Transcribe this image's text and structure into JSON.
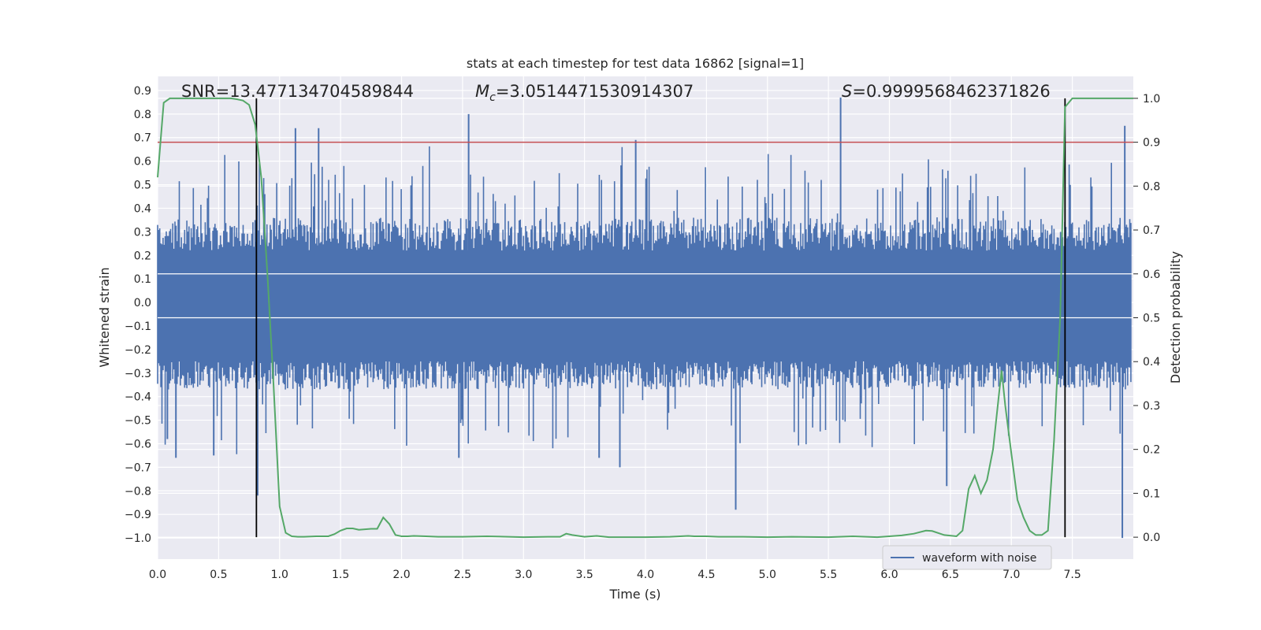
{
  "chart_data": {
    "type": "line",
    "title": "stats at each timestep for test data 16862 [signal=1]",
    "xlabel": "Time (s)",
    "ylabel": "Whitened strain",
    "y2label": "Detection probability",
    "xlim": [
      0.0,
      8.0
    ],
    "ylim": [
      -1.09,
      0.96
    ],
    "y2lim": [
      -0.05,
      1.05
    ],
    "xticks": [
      "0.0",
      "0.5",
      "1.0",
      "1.5",
      "2.0",
      "2.5",
      "3.0",
      "3.5",
      "4.0",
      "4.5",
      "5.0",
      "5.5",
      "6.0",
      "6.5",
      "7.0",
      "7.5"
    ],
    "yticks": [
      "0.9",
      "0.8",
      "0.7",
      "0.6",
      "0.5",
      "0.4",
      "0.3",
      "0.2",
      "0.1",
      "0.0",
      "−0.1",
      "−0.2",
      "−0.3",
      "−0.4",
      "−0.5",
      "−0.6",
      "−0.7",
      "−0.8",
      "−0.9",
      "−1.0"
    ],
    "y2ticks": [
      "1.0",
      "0.9",
      "0.8",
      "0.7",
      "0.6",
      "0.5",
      "0.4",
      "0.3",
      "0.2",
      "0.1",
      "0.0"
    ],
    "annotations": {
      "snr": "SNR=13.477134704589844",
      "mc": "=3.0514471530914307",
      "mc_symbol": "M",
      "mc_sub": "c",
      "s": "=0.9999568462371826",
      "s_symbol": "S"
    },
    "threshold": {
      "value": 0.9,
      "axis": "right",
      "color": "#c44e52"
    },
    "vlines": [
      0.81,
      7.44
    ],
    "legend": {
      "label": "waveform with noise",
      "position": "lower-right"
    },
    "colors": {
      "waveform": "#4c72b0",
      "probability": "#55a868",
      "threshold": "#c44e52",
      "vline": "#000000",
      "background": "#eaeaf2",
      "grid": "#ffffff"
    },
    "series": [
      {
        "name": "waveform with noise",
        "axis": "left",
        "description": "whitened strain noise, typical range about -0.3 to 0.3, peaks up to 0.87",
        "spikes": [
          {
            "x": 0.08,
            "y": -0.58
          },
          {
            "x": 0.15,
            "y": -0.66
          },
          {
            "x": 0.46,
            "y": -0.65
          },
          {
            "x": 0.82,
            "y": -0.82
          },
          {
            "x": 1.13,
            "y": 0.74
          },
          {
            "x": 1.32,
            "y": 0.74
          },
          {
            "x": 2.47,
            "y": -0.66
          },
          {
            "x": 2.55,
            "y": 0.8
          },
          {
            "x": 3.62,
            "y": -0.66
          },
          {
            "x": 3.79,
            "y": -0.7
          },
          {
            "x": 3.92,
            "y": 0.69
          },
          {
            "x": 4.74,
            "y": -0.88
          },
          {
            "x": 5.6,
            "y": 0.87
          },
          {
            "x": 6.47,
            "y": -0.78
          },
          {
            "x": 7.91,
            "y": -1.0
          },
          {
            "x": 7.93,
            "y": 0.75
          }
        ]
      },
      {
        "name": "detection probability",
        "axis": "right",
        "x": [
          0.0,
          0.05,
          0.1,
          0.15,
          0.2,
          0.3,
          0.4,
          0.5,
          0.55,
          0.6,
          0.65,
          0.7,
          0.75,
          0.8,
          0.85,
          0.9,
          0.95,
          1.0,
          1.05,
          1.1,
          1.15,
          1.2,
          1.3,
          1.4,
          1.45,
          1.5,
          1.55,
          1.6,
          1.65,
          1.7,
          1.75,
          1.8,
          1.85,
          1.9,
          1.95,
          2.0,
          2.05,
          2.1,
          2.2,
          2.3,
          2.5,
          2.7,
          3.0,
          3.2,
          3.3,
          3.35,
          3.4,
          3.5,
          3.6,
          3.7,
          3.8,
          3.9,
          4.0,
          4.2,
          4.35,
          4.4,
          4.5,
          4.6,
          4.8,
          5.0,
          5.2,
          5.5,
          5.7,
          5.9,
          6.0,
          6.1,
          6.2,
          6.3,
          6.35,
          6.45,
          6.55,
          6.6,
          6.65,
          6.7,
          6.75,
          6.8,
          6.85,
          6.9,
          6.92,
          6.95,
          7.0,
          7.05,
          7.1,
          7.15,
          7.2,
          7.25,
          7.3,
          7.35,
          7.4,
          7.44,
          7.5,
          7.55,
          7.6,
          7.7,
          7.8,
          7.9,
          8.0
        ],
        "y": [
          0.82,
          0.99,
          1.0,
          1.0,
          1.0,
          1.0,
          1.0,
          1.0,
          1.0,
          1.0,
          0.998,
          0.995,
          0.985,
          0.94,
          0.82,
          0.6,
          0.35,
          0.07,
          0.01,
          0.002,
          0.001,
          0.001,
          0.002,
          0.002,
          0.007,
          0.015,
          0.02,
          0.02,
          0.017,
          0.018,
          0.019,
          0.019,
          0.045,
          0.03,
          0.005,
          0.002,
          0.002,
          0.003,
          0.002,
          0.001,
          0.001,
          0.002,
          0.0,
          0.001,
          0.001,
          0.008,
          0.005,
          0.001,
          0.003,
          0.0,
          0.0,
          0.0,
          0.0,
          0.001,
          0.003,
          0.002,
          0.002,
          0.001,
          0.001,
          0.0,
          0.001,
          0.0,
          0.002,
          0.0,
          0.002,
          0.004,
          0.008,
          0.015,
          0.014,
          0.005,
          0.002,
          0.015,
          0.11,
          0.14,
          0.1,
          0.13,
          0.2,
          0.33,
          0.38,
          0.3,
          0.19,
          0.085,
          0.045,
          0.015,
          0.005,
          0.005,
          0.015,
          0.22,
          0.5,
          0.98,
          1.0,
          1.0,
          1.0,
          1.0,
          1.0,
          1.0,
          1.0
        ]
      }
    ]
  }
}
